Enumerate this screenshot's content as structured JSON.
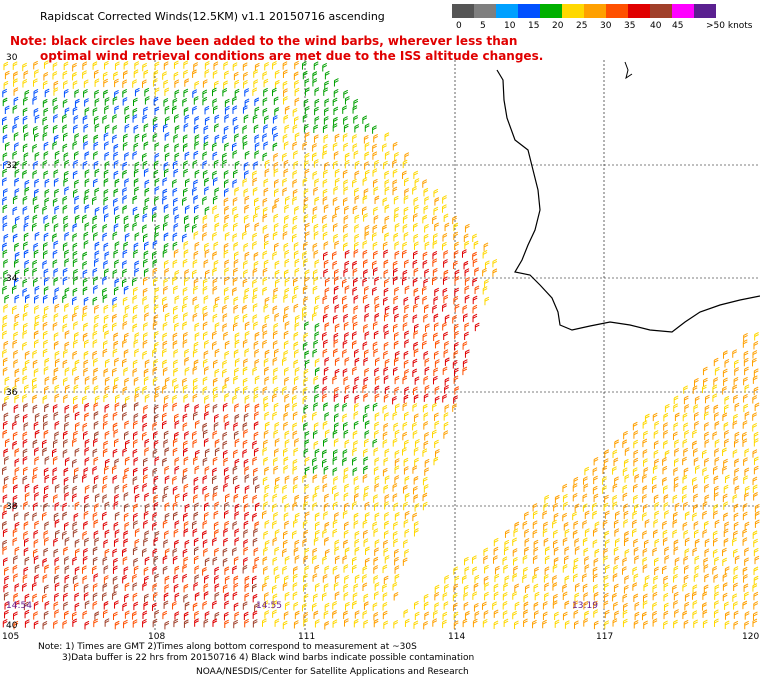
{
  "title": "Rapidscat Corrected Winds(12.5KM) v1.1 20150716 ascending",
  "note_line1": "Note: black circles have been added to the wind barbs, wherever less than",
  "note_line2": "optimal wind retrieval conditions are met due to the ISS altitude changes.",
  "legend": {
    "colors": [
      "#555555",
      "#7f7f7f",
      "#00a0ff",
      "#0050ff",
      "#00b000",
      "#ffd800",
      "#ffa000",
      "#ff5000",
      "#e00000",
      "#a0402a",
      "#ff00ff",
      "#5a2090"
    ],
    "labels": [
      "0",
      "5",
      "10",
      "15",
      "20",
      "25",
      "30",
      "35",
      "40",
      "45",
      ">50 knots"
    ]
  },
  "lat_labels": [
    "30",
    "32",
    "34",
    "36",
    "38",
    "40"
  ],
  "lon_labels": [
    "105",
    "108",
    "111",
    "114",
    "117",
    "120"
  ],
  "times": [
    "14:54",
    "14:55",
    "13:19"
  ],
  "footer": {
    "line1": "Note: 1) Times are GMT 2)Times along bottom correspond to measurement at ~30S",
    "line2": "3)Data buffer is 22 hrs from 20150716 4) Black wind barbs indicate possible contamination",
    "line3": "NOAA/NESDIS/Center for Satellite Applications and Research"
  }
}
